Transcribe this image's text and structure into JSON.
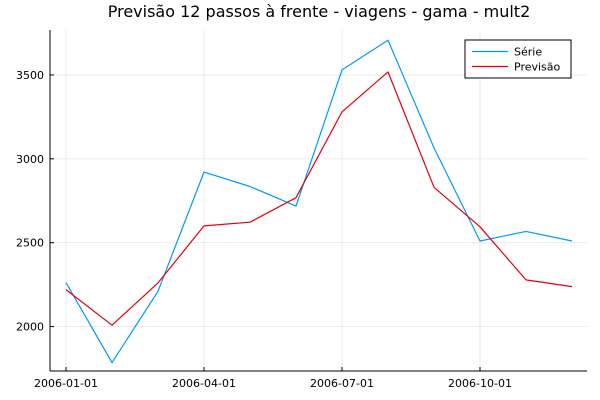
{
  "chart_data": {
    "type": "line",
    "title": "Previsão 12 passos à frente - viagens - gama - mult2",
    "xlabel": "",
    "ylabel": "",
    "x": [
      "2006-01-01",
      "2006-02-01",
      "2006-03-01",
      "2006-04-01",
      "2006-05-01",
      "2006-06-01",
      "2006-07-01",
      "2006-08-01",
      "2006-09-01",
      "2006-10-01",
      "2006-11-01",
      "2006-12-01"
    ],
    "series": [
      {
        "name": "Série",
        "color": "#009af9",
        "values": [
          2262,
          1785,
          2210,
          2921,
          2835,
          2718,
          3530,
          3707,
          3065,
          2510,
          2567,
          2510
        ]
      },
      {
        "name": "Previsão",
        "color": "#e3000f",
        "values": [
          2220,
          2008,
          2260,
          2600,
          2622,
          2768,
          3280,
          3518,
          2830,
          2595,
          2278,
          2238
        ]
      }
    ],
    "xticks": [
      "2006-01-01",
      "2006-04-01",
      "2006-07-01",
      "2006-10-01"
    ],
    "yticks": [
      2000,
      2500,
      3000,
      3500
    ],
    "ylim": [
      1735,
      3768
    ],
    "grid": true,
    "legend_position": "top-right"
  }
}
